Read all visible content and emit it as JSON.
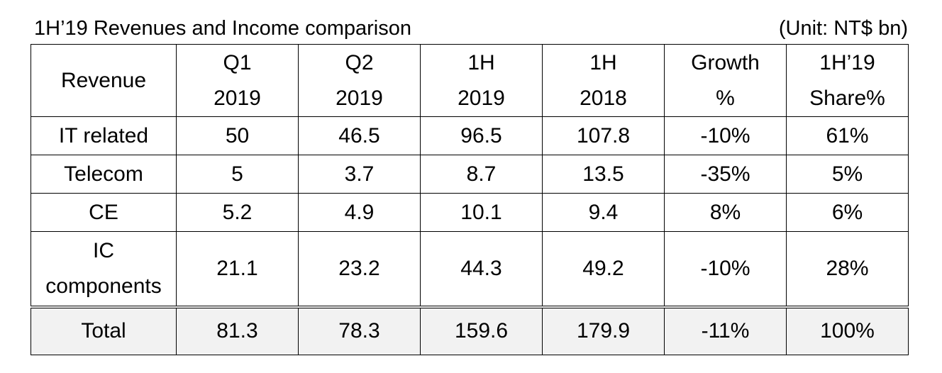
{
  "caption": {
    "title": "1H’19 Revenues and Income comparison",
    "unit": "(Unit: NT$ bn)"
  },
  "table": {
    "header": {
      "revenue": "Revenue",
      "columns": [
        {
          "line1": "Q1",
          "line2": "2019"
        },
        {
          "line1": "Q2",
          "line2": "2019"
        },
        {
          "line1": "1H",
          "line2": "2019"
        },
        {
          "line1": "1H",
          "line2": "2018"
        },
        {
          "line1": "Growth",
          "line2": "%"
        },
        {
          "line1": "1H’19",
          "line2": "Share%"
        }
      ]
    },
    "rows": [
      {
        "label": "IT related",
        "values": [
          "50",
          "46.5",
          "96.5",
          "107.8",
          "-10%",
          "61%"
        ]
      },
      {
        "label": "Telecom",
        "values": [
          "5",
          "3.7",
          "8.7",
          "13.5",
          "-35%",
          "5%"
        ]
      },
      {
        "label": "CE",
        "values": [
          "5.2",
          "4.9",
          "10.1",
          "9.4",
          "8%",
          "6%"
        ]
      },
      {
        "label_line1": "IC",
        "label_line2": "components",
        "values": [
          "21.1",
          "23.2",
          "44.3",
          "49.2",
          "-10%",
          "28%"
        ]
      }
    ],
    "total": {
      "label": "Total",
      "values": [
        "81.3",
        "78.3",
        "159.6",
        "179.9",
        "-11%",
        "100%"
      ]
    }
  }
}
